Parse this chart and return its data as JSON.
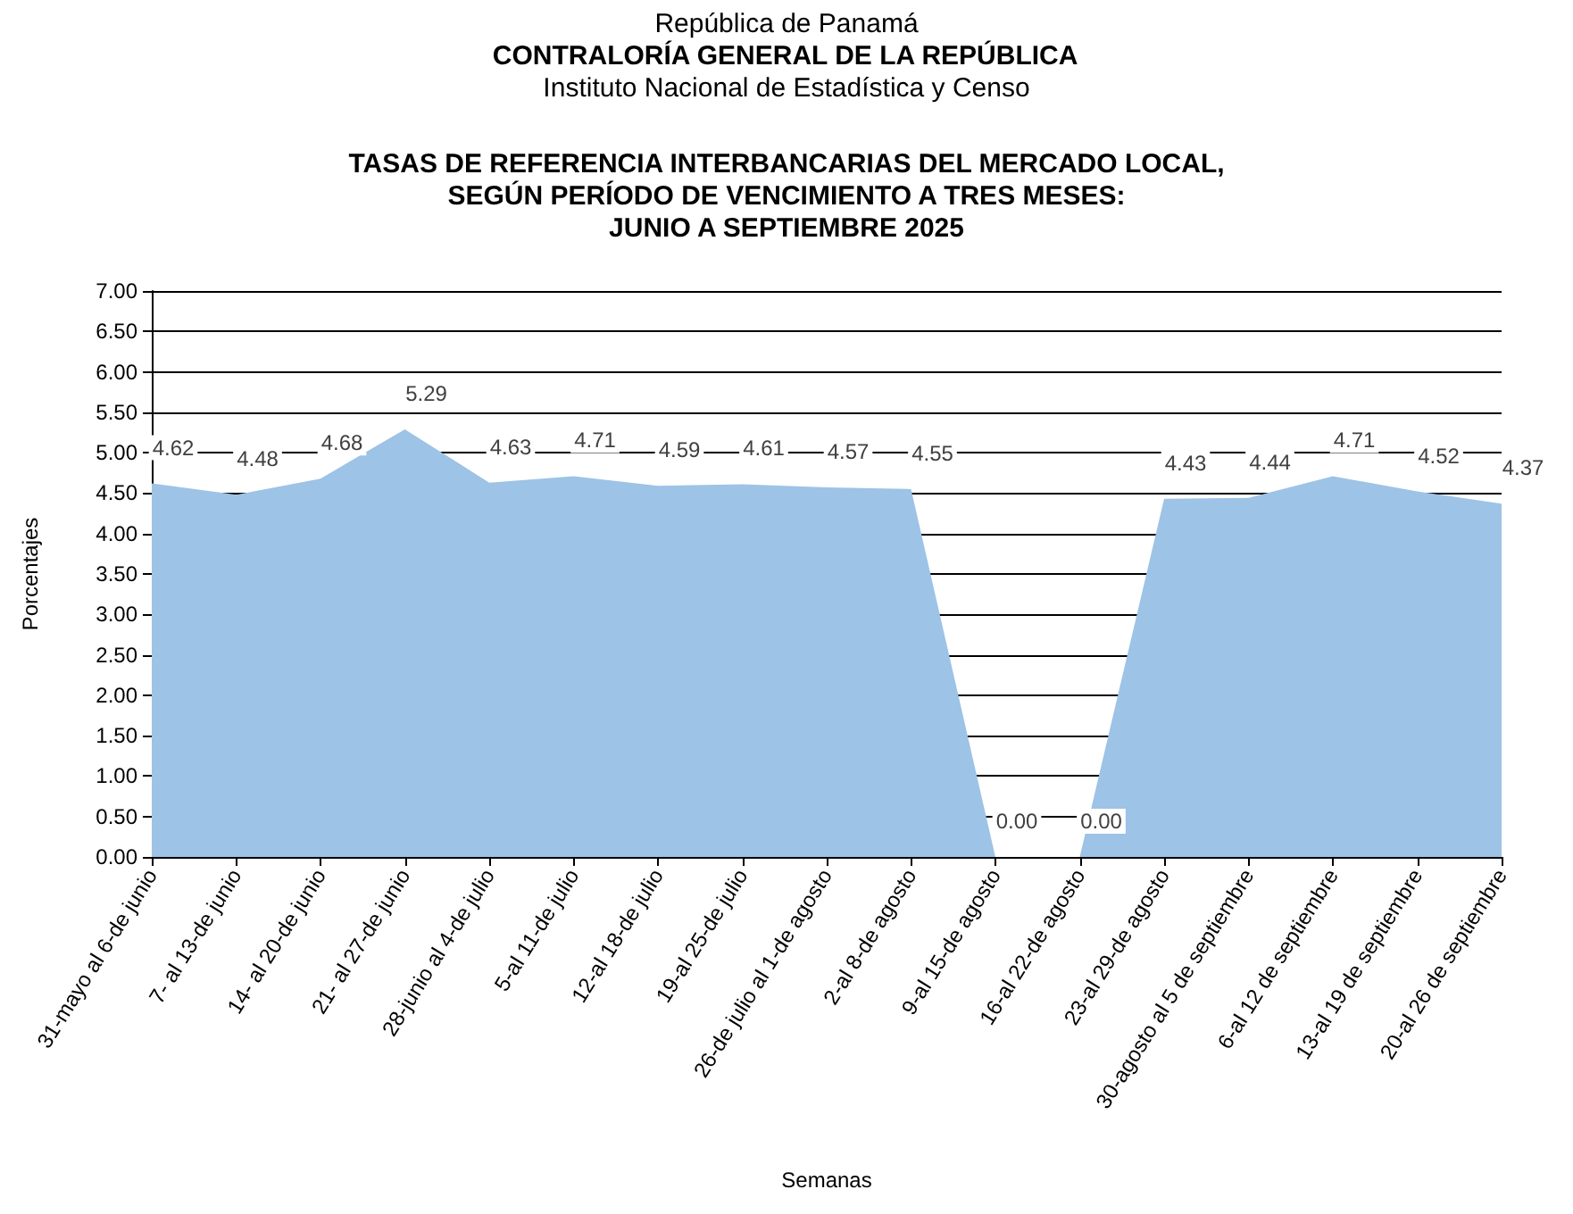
{
  "chart_data": {
    "type": "area",
    "title": "TASAS DE REFERENCIA INTERBANCARIAS DEL MERCADO LOCAL,\nSEGÚN PERÍODO DE VENCIMIENTO A TRES MESES:\nJUNIO A SEPTIEMBRE 2025",
    "annotations": [
      "República de Panamá",
      "CONTRALORÍA GENERAL DE LA REPÚBLICA",
      "Instituto Nacional de Estadística y Censo"
    ],
    "xlabel": "Semanas",
    "ylabel": "Porcentajes",
    "categories": [
      "31-mayo al 6-de junio",
      "7- al 13-de junio",
      "14- al 20-de junio",
      "21- al 27-de junio",
      "28-junio al 4-de julio",
      "5-al 11-de julio",
      "12-al 18-de julio",
      "19-al 25-de julio",
      "26-de julio al 1-de agosto",
      "2-al 8-de agosto",
      "9-al 15-de agosto",
      "16-al 22-de agosto",
      "23-al 29-de agosto",
      "30-agosto al 5 de septiembre",
      "6-al 12 de septiembre",
      "13-al 19 de septiembre",
      "20-al 26 de septiembre"
    ],
    "values": [
      4.62,
      4.48,
      4.68,
      5.29,
      4.63,
      4.71,
      4.59,
      4.61,
      4.57,
      4.55,
      0,
      0,
      4.43,
      4.44,
      4.71,
      4.52,
      4.37
    ],
    "value_labels": [
      "4.62",
      "4.48",
      "4.68",
      "5.29",
      "4.63",
      "4.71",
      "4.59",
      "4.61",
      "4.57",
      "4.55",
      "0.00",
      "0.00",
      "4.43",
      "4.44",
      "4.71",
      "4.52",
      "4.37"
    ],
    "color": "#9dc3e6",
    "ylim": [
      0,
      7
    ],
    "yticks": [
      {
        "value": 0,
        "label": "0.00"
      },
      {
        "value": 0.5,
        "label": "0.50"
      },
      {
        "value": 1,
        "label": "1.00"
      },
      {
        "value": 1.5,
        "label": "1.50"
      },
      {
        "value": 2,
        "label": "2.00"
      },
      {
        "value": 2.5,
        "label": "2.50"
      },
      {
        "value": 3,
        "label": "3.00"
      },
      {
        "value": 3.5,
        "label": "3.50"
      },
      {
        "value": 4,
        "label": "4.00"
      },
      {
        "value": 4.5,
        "label": "4.50"
      },
      {
        "value": 5,
        "label": "5.00"
      },
      {
        "value": 5.5,
        "label": "5.50"
      },
      {
        "value": 6,
        "label": "6.00"
      },
      {
        "value": 6.5,
        "label": "6.50"
      },
      {
        "value": 7,
        "label": "7.00"
      }
    ],
    "grid": "y",
    "marker": "none"
  }
}
